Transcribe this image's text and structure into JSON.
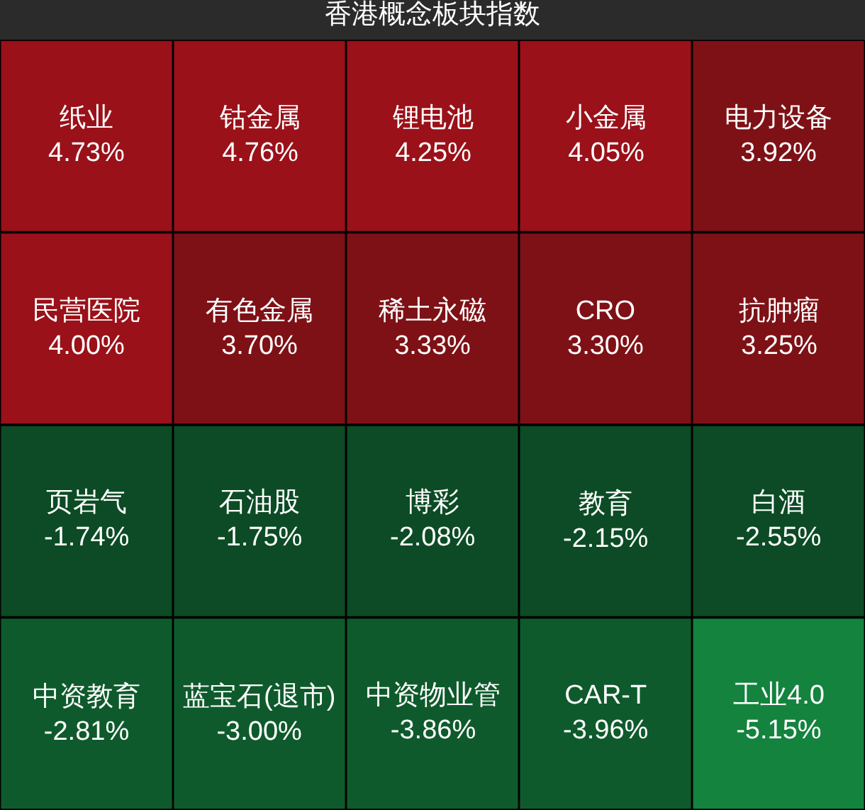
{
  "chart_data": {
    "type": "other",
    "title": "香港概念板块指数",
    "categories": [
      "纸业",
      "钴金属",
      "锂电池",
      "小金属",
      "电力设备",
      "民营医院",
      "有色金属",
      "稀土永磁",
      "CRO",
      "抗肿瘤",
      "页岩气",
      "石油股",
      "博彩",
      "教育",
      "白酒",
      "中资教育",
      "蓝宝石(退市)",
      "中资物业管",
      "CAR-T",
      "工业4.0"
    ],
    "values": [
      4.73,
      4.76,
      4.25,
      4.05,
      3.92,
      4.0,
      3.7,
      3.33,
      3.3,
      3.25,
      -1.74,
      -1.75,
      -2.08,
      -2.15,
      -2.55,
      -2.81,
      -3.0,
      -3.86,
      -3.96,
      -5.15
    ],
    "value_labels": [
      "4.73%",
      "4.76%",
      "4.25%",
      "4.05%",
      "3.92%",
      "4.00%",
      "3.70%",
      "3.33%",
      "3.30%",
      "3.25%",
      "-1.74%",
      "-1.75%",
      "-2.08%",
      "-2.15%",
      "-2.55%",
      "-2.81%",
      "-3.00%",
      "-3.86%",
      "-3.96%",
      "-5.15%"
    ],
    "colors": [
      "#9a1119",
      "#9a1119",
      "#9a1119",
      "#9a1119",
      "#7e1116",
      "#9a1119",
      "#7e1116",
      "#7e1116",
      "#7e1116",
      "#7e1116",
      "#0c4b25",
      "#0c4b25",
      "#0c4b25",
      "#0c4b25",
      "#0c4b25",
      "#0f5a2c",
      "#0f5a2c",
      "#0f5a2c",
      "#0f5a2c",
      "#13833e"
    ]
  }
}
